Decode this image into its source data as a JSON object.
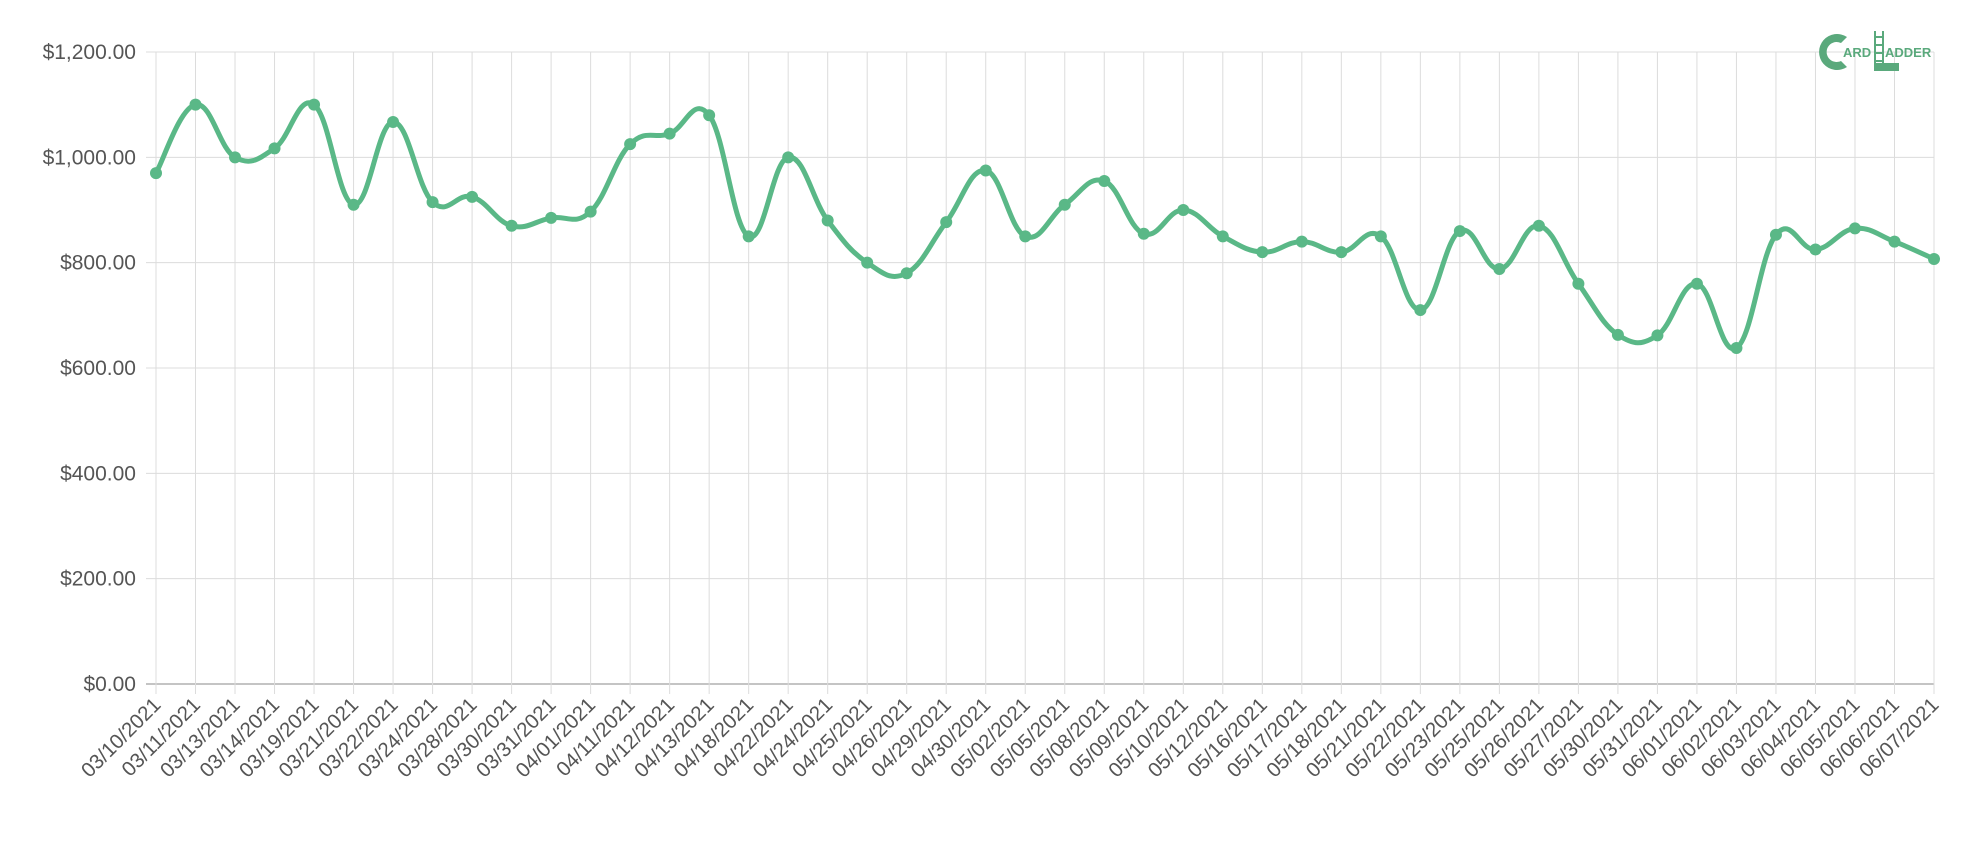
{
  "colors": {
    "series": "#5ab887",
    "logo": "#5aa97c"
  },
  "logo": {
    "text": "CARD LADDER"
  },
  "chart_data": {
    "type": "line",
    "title": "",
    "xlabel": "",
    "ylabel": "",
    "ylim": [
      0,
      1200
    ],
    "yticks": [
      0,
      200,
      400,
      600,
      800,
      1000,
      1200
    ],
    "y_tick_labels": [
      "$0.00",
      "$200.00",
      "$400.00",
      "$600.00",
      "$800.00",
      "$1,000.00",
      "$1,200.00"
    ],
    "grid": true,
    "legend": "none",
    "smooth": true,
    "categories": [
      "03/10/2021",
      "03/11/2021",
      "03/13/2021",
      "03/14/2021",
      "03/19/2021",
      "03/21/2021",
      "03/22/2021",
      "03/24/2021",
      "03/28/2021",
      "03/30/2021",
      "03/31/2021",
      "04/01/2021",
      "04/11/2021",
      "04/12/2021",
      "04/13/2021",
      "04/18/2021",
      "04/22/2021",
      "04/24/2021",
      "04/25/2021",
      "04/26/2021",
      "04/29/2021",
      "04/30/2021",
      "05/02/2021",
      "05/05/2021",
      "05/08/2021",
      "05/09/2021",
      "05/10/2021",
      "05/12/2021",
      "05/16/2021",
      "05/17/2021",
      "05/18/2021",
      "05/21/2021",
      "05/22/2021",
      "05/23/2021",
      "05/25/2021",
      "05/26/2021",
      "05/27/2021",
      "05/30/2021",
      "05/31/2021",
      "06/01/2021",
      "06/02/2021",
      "06/03/2021",
      "06/04/2021",
      "06/05/2021",
      "06/06/2021",
      "06/07/2021"
    ],
    "series": [
      {
        "values": [
          970,
          1100,
          1000,
          1017,
          1100,
          910,
          1067,
          915,
          925,
          870,
          885,
          897,
          1025,
          1045,
          1080,
          850,
          1000,
          880,
          800,
          780,
          877,
          975,
          850,
          910,
          955,
          855,
          900,
          850,
          820,
          840,
          820,
          850,
          710,
          860,
          788,
          870,
          760,
          663,
          662,
          760,
          638,
          853,
          825,
          865,
          840,
          807
        ]
      }
    ]
  }
}
